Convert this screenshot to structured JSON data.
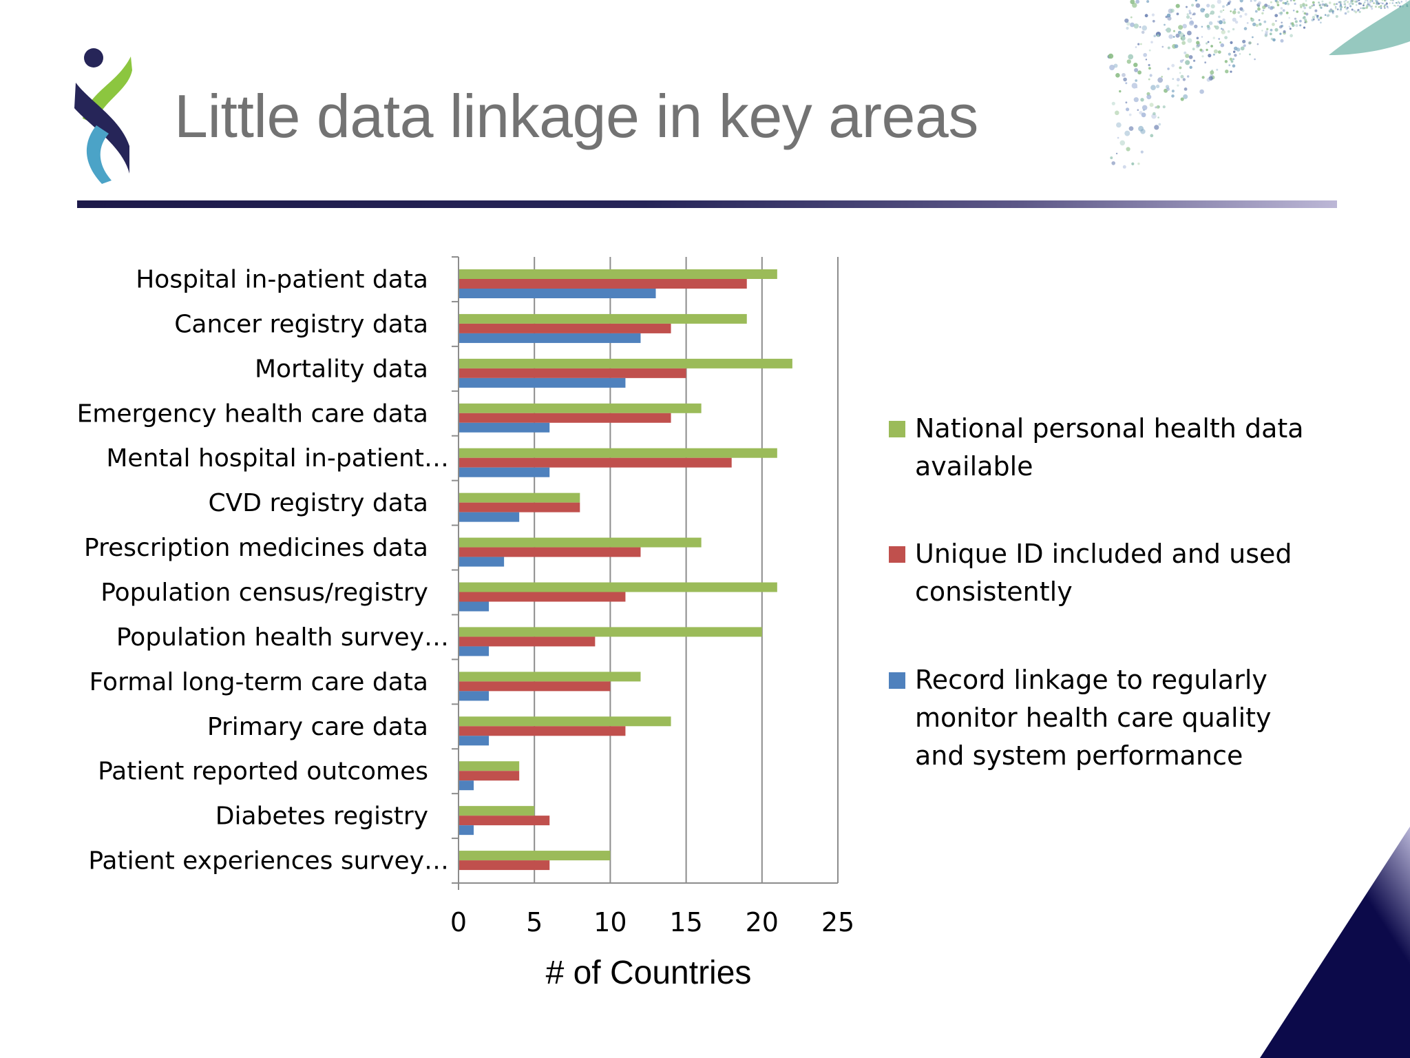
{
  "slide": {
    "title": "Little data linkage in key areas"
  },
  "colors": {
    "green": "#9bbb59",
    "red": "#c0504d",
    "blue": "#4f81bd",
    "title": "#737373",
    "rule": "#262558",
    "corner": "#0c0a4a"
  },
  "icons": {
    "logo": "dna-helix-logo",
    "decoration": "dot-swirl",
    "corner": "navy-corner-triangle"
  },
  "chart_data": {
    "type": "bar",
    "orientation": "horizontal",
    "categories": [
      "Hospital in-patient data",
      "Cancer registry data",
      "Mortality data",
      "Emergency health care data",
      "Mental hospital in-patient…",
      "CVD registry data",
      "Prescription medicines data",
      "Population census/registry",
      "Population health survey…",
      "Formal long-term care data",
      "Primary care data",
      "Patient reported outcomes",
      "Diabetes registry",
      "Patient experiences  survey…"
    ],
    "series": [
      {
        "name": "National personal health data available",
        "color": "#9bbb59",
        "values": [
          21,
          19,
          22,
          16,
          21,
          8,
          16,
          21,
          20,
          12,
          14,
          4,
          5,
          10
        ]
      },
      {
        "name": "Unique ID included and used consistently",
        "color": "#c0504d",
        "values": [
          19,
          14,
          15,
          14,
          18,
          8,
          12,
          11,
          9,
          10,
          11,
          4,
          6,
          6
        ]
      },
      {
        "name": "Record linkage to regularly monitor health care quality and system performance",
        "color": "#4f81bd",
        "values": [
          13,
          12,
          11,
          6,
          6,
          4,
          3,
          2,
          2,
          2,
          2,
          1,
          1,
          0
        ]
      }
    ],
    "legend": [
      {
        "lines": [
          "National personal health data",
          "available"
        ],
        "color": "#9bbb59"
      },
      {
        "lines": [
          "Unique ID included and used",
          "consistently"
        ],
        "color": "#c0504d"
      },
      {
        "lines": [
          "Record linkage to regularly",
          "monitor health care quality",
          "and system performance"
        ],
        "color": "#4f81bd"
      }
    ],
    "xticks": [
      "0",
      "5",
      "10",
      "15",
      "20",
      "25"
    ],
    "xlim": [
      0,
      25
    ],
    "xlabel": "# of Countries",
    "ylabel": "",
    "grid": true,
    "legend_position": "right"
  }
}
